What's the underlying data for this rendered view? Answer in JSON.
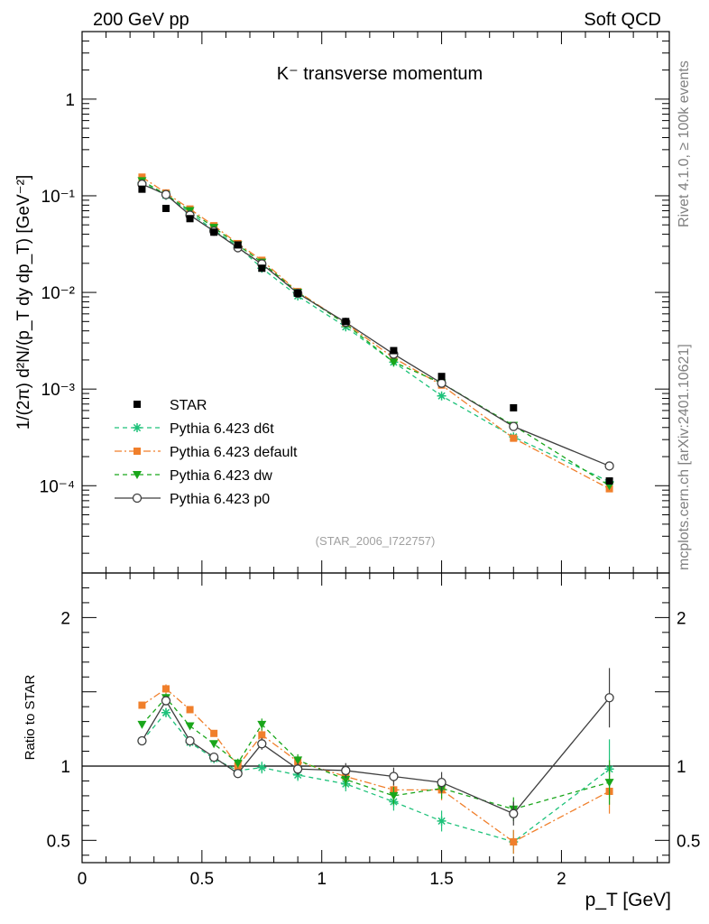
{
  "header": {
    "left": "200 GeV pp",
    "right": "Soft QCD"
  },
  "side_text": {
    "rivet": "Rivet 4.1.0, ≥ 100k events",
    "mcplots": "mcplots.cern.ch [arXiv:2401.10621]"
  },
  "chart_data": {
    "type": "scatter",
    "title": "K⁻ transverse momentum",
    "analysis_id": "(STAR_2006_I722757)",
    "xlabel": "p_T [GeV]",
    "ylabel_main": "1/(2π) d²N/(p_T dy dp_T) [GeV⁻²]",
    "ylabel_ratio": "Ratio to STAR",
    "xlim": [
      0,
      2.45
    ],
    "ylim_main": [
      1.25e-05,
      5
    ],
    "yscale_main": "log",
    "ylim_ratio": [
      0.35,
      2.3
    ],
    "x_ticks": [
      "0",
      "0.5",
      "1",
      "1.5",
      "2"
    ],
    "y_ticks_main": [
      "10⁻⁴",
      "10⁻³",
      "10⁻²",
      "10⁻¹",
      "1"
    ],
    "y_ticks_ratio": [
      "0.5",
      "1",
      "2"
    ],
    "legend_position": "lower-left",
    "x": [
      0.25,
      0.35,
      0.45,
      0.55,
      0.65,
      0.75,
      0.9,
      1.1,
      1.3,
      1.5,
      1.8,
      2.2
    ],
    "series": [
      {
        "name": "STAR",
        "color": "#000000",
        "marker": "square",
        "line": "none",
        "values": [
          0.117,
          0.074,
          0.058,
          0.042,
          0.031,
          0.0178,
          0.0098,
          0.005,
          0.0025,
          0.00135,
          0.00064,
          0.000112
        ],
        "ratio": [
          1,
          1,
          1,
          1,
          1,
          1,
          1,
          1,
          1,
          1,
          1,
          1
        ]
      },
      {
        "name": "Pythia 6.423 d6t",
        "color": "#1ec27a",
        "marker": "star",
        "line": "dashed",
        "values": [
          0.137,
          0.101,
          0.067,
          0.044,
          0.03,
          0.0178,
          0.0092,
          0.0044,
          0.0019,
          0.00085,
          0.00032,
          0.00011
        ],
        "ratio": [
          1.17,
          1.36,
          1.16,
          1.05,
          0.97,
          0.99,
          0.94,
          0.88,
          0.76,
          0.63,
          0.49,
          0.98
        ],
        "ratio_err": [
          0.02,
          0.03,
          0.02,
          0.02,
          0.03,
          0.04,
          0.04,
          0.05,
          0.06,
          0.07,
          0.08,
          0.2
        ]
      },
      {
        "name": "Pythia 6.423 default",
        "color": "#f07f2b",
        "marker": "square",
        "line": "dashdot",
        "values": [
          0.156,
          0.107,
          0.073,
          0.049,
          0.032,
          0.0215,
          0.0102,
          0.0048,
          0.0021,
          0.0011,
          0.00031,
          9.3e-05
        ],
        "ratio": [
          1.41,
          1.52,
          1.38,
          1.22,
          1.0,
          1.21,
          1.03,
          0.93,
          0.84,
          0.84,
          0.49,
          0.83
        ],
        "ratio_err": [
          0.02,
          0.03,
          0.02,
          0.02,
          0.03,
          0.04,
          0.04,
          0.05,
          0.06,
          0.07,
          0.08,
          0.15
        ]
      },
      {
        "name": "Pythia 6.423 dw",
        "color": "#19a61a",
        "marker": "triangle-down",
        "line": "dashed",
        "values": [
          0.143,
          0.103,
          0.07,
          0.047,
          0.031,
          0.0205,
          0.01,
          0.0047,
          0.0019,
          0.00115,
          0.00042,
          0.0001
        ],
        "ratio": [
          1.28,
          1.46,
          1.27,
          1.15,
          1.02,
          1.28,
          1.04,
          0.91,
          0.8,
          0.85,
          0.71,
          0.89
        ],
        "ratio_err": [
          0.02,
          0.03,
          0.02,
          0.02,
          0.03,
          0.04,
          0.04,
          0.05,
          0.06,
          0.07,
          0.08,
          0.15
        ]
      },
      {
        "name": "Pythia 6.423 p0",
        "color": "#3f3f3f",
        "marker": "circle-open",
        "line": "solid",
        "values": [
          0.132,
          0.103,
          0.063,
          0.043,
          0.029,
          0.0197,
          0.0098,
          0.0049,
          0.0023,
          0.00115,
          0.00041,
          0.00016
        ],
        "ratio": [
          1.17,
          1.44,
          1.17,
          1.06,
          0.95,
          1.15,
          0.98,
          0.97,
          0.93,
          0.89,
          0.68,
          1.46
        ],
        "ratio_err": [
          0.02,
          0.03,
          0.02,
          0.02,
          0.03,
          0.04,
          0.04,
          0.05,
          0.06,
          0.07,
          0.08,
          0.2
        ]
      }
    ]
  }
}
